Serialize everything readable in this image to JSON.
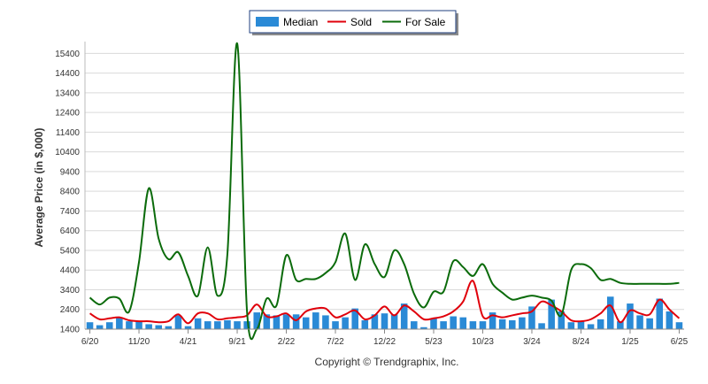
{
  "chart_data": {
    "type": "bar+line",
    "ylabel": "Average Price (in $,000)",
    "credit": "Copyright © Trendgraphix, Inc.",
    "ylim": [
      1400,
      16000
    ],
    "yticks": [
      1400,
      2400,
      3400,
      4400,
      5400,
      6400,
      7400,
      8400,
      9400,
      10400,
      11400,
      12400,
      13400,
      14400,
      15400
    ],
    "xtick_labels": [
      {
        "label": "6/20",
        "index": 0
      },
      {
        "label": "11/20",
        "index": 5
      },
      {
        "label": "4/21",
        "index": 10
      },
      {
        "label": "9/21",
        "index": 15
      },
      {
        "label": "2/22",
        "index": 20
      },
      {
        "label": "7/22",
        "index": 25
      },
      {
        "label": "12/22",
        "index": 30
      },
      {
        "label": "5/23",
        "index": 35
      },
      {
        "label": "10/23",
        "index": 40
      },
      {
        "label": "3/24",
        "index": 45
      },
      {
        "label": "8/24",
        "index": 50
      },
      {
        "label": "1/25",
        "index": 55
      },
      {
        "label": "6/25",
        "index": 60
      }
    ],
    "legend": {
      "placement": "top-center",
      "items": [
        {
          "name": "Median",
          "kind": "bar",
          "color": "#2a8ad6"
        },
        {
          "name": "Sold",
          "kind": "line",
          "color": "#e0000b"
        },
        {
          "name": "For Sale",
          "kind": "line",
          "color": "#0b6b0b"
        }
      ]
    },
    "series": [
      {
        "name": "Median",
        "type": "bar",
        "color": "#2a8ad6",
        "values": [
          1750,
          1600,
          1750,
          2000,
          1800,
          1800,
          1650,
          1600,
          1550,
          2100,
          1550,
          1950,
          1800,
          1800,
          1850,
          1800,
          1800,
          2250,
          2150,
          2100,
          2150,
          2150,
          2000,
          2250,
          2100,
          1800,
          2000,
          2450,
          1850,
          2150,
          2200,
          2150,
          2700,
          1800,
          1500,
          1950,
          1800,
          2050,
          2000,
          1800,
          1800,
          2250,
          1900,
          1850,
          2000,
          2550,
          1700,
          2900,
          2300,
          1750,
          1800,
          1650,
          1900,
          3050,
          1800,
          2700,
          2100,
          1950,
          2950,
          2300,
          1750
        ]
      },
      {
        "name": "Sold",
        "type": "line",
        "color": "#e0000b",
        "values": [
          2200,
          1900,
          1950,
          2000,
          1850,
          1800,
          1800,
          1750,
          1800,
          2150,
          1700,
          2200,
          2200,
          1900,
          1950,
          2000,
          2100,
          2650,
          2050,
          2050,
          2200,
          1850,
          2300,
          2450,
          2450,
          2000,
          2150,
          2350,
          1900,
          2100,
          2550,
          2100,
          2600,
          2300,
          1900,
          1950,
          2050,
          2300,
          2800,
          3850,
          2050,
          2100,
          2000,
          2100,
          2200,
          2300,
          2800,
          2600,
          2300,
          1850,
          1800,
          1900,
          2200,
          2600,
          1750,
          2350,
          2200,
          2150,
          2900,
          2400,
          1950
        ]
      },
      {
        "name": "For Sale",
        "type": "line",
        "color": "#0b6b0b",
        "values": [
          3000,
          2650,
          3000,
          2950,
          2300,
          4800,
          8550,
          6000,
          4950,
          5300,
          4100,
          3100,
          5550,
          3100,
          5200,
          15900,
          2300,
          1400,
          2950,
          2600,
          5150,
          3900,
          3950,
          3950,
          4250,
          4800,
          6250,
          3900,
          5700,
          4700,
          4050,
          5400,
          4700,
          3200,
          2500,
          3300,
          3300,
          4850,
          4550,
          4100,
          4700,
          3700,
          3250,
          2900,
          3000,
          3100,
          3000,
          2850,
          2100,
          4400,
          4700,
          4500,
          3900,
          3950,
          3750,
          3700,
          3700,
          3700,
          3700,
          3700,
          3750
        ]
      }
    ]
  }
}
